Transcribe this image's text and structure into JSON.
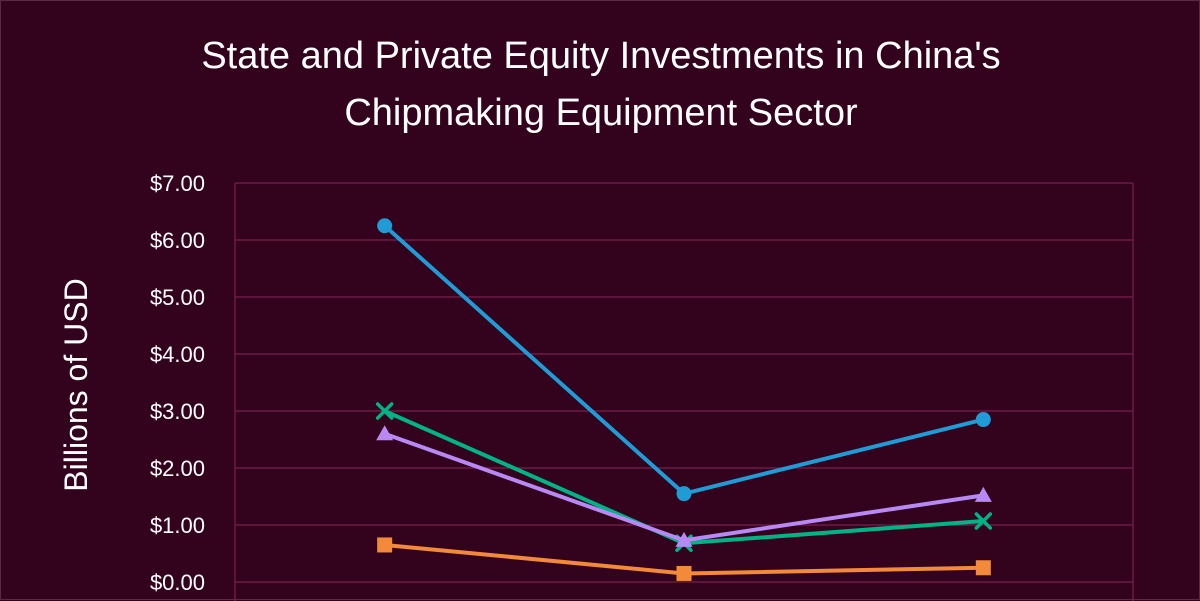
{
  "colors": {
    "background": "#33031d",
    "grid": "#7a1f4f",
    "text": "#ffffff"
  },
  "chart_data": {
    "type": "line",
    "title": "State and Private Equity Investments in China's Chipmaking Equipment Sector",
    "title_lines": [
      "State and Private Equity Investments in China's",
      "Chipmaking Equipment Sector"
    ],
    "xlabel": "",
    "ylabel": "Billions of USD",
    "ylim": [
      0,
      7
    ],
    "yticks": [
      0,
      1,
      2,
      3,
      4,
      5,
      6,
      7
    ],
    "ytick_labels": [
      "$0.00",
      "$1.00",
      "$2.00",
      "$3.00",
      "$4.00",
      "$5.00",
      "$6.00",
      "$7.00"
    ],
    "grid": true,
    "categories": [
      "",
      "",
      ""
    ],
    "series": [
      {
        "name": "",
        "color": "#1f9bd6",
        "marker": "circle",
        "values": [
          6.25,
          1.55,
          2.85
        ]
      },
      {
        "name": "",
        "color": "#00b386",
        "marker": "x",
        "values": [
          3.0,
          0.68,
          1.07
        ]
      },
      {
        "name": "",
        "color": "#b889f4",
        "marker": "triangle",
        "values": [
          2.6,
          0.73,
          1.52
        ]
      },
      {
        "name": "",
        "color": "#f28a3a",
        "marker": "square",
        "values": [
          0.65,
          0.15,
          0.25
        ]
      }
    ]
  }
}
